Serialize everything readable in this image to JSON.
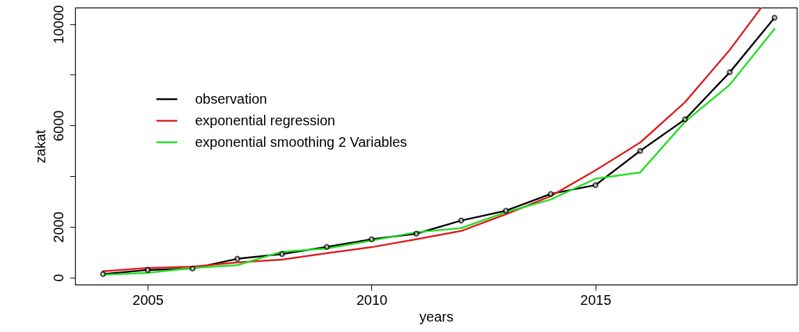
{
  "chart_data": {
    "type": "line",
    "xlabel": "years",
    "ylabel": "zakat",
    "x": [
      2004,
      2005,
      2006,
      2007,
      2008,
      2009,
      2010,
      2011,
      2012,
      2013,
      2014,
      2015,
      2016,
      2017,
      2018,
      2019
    ],
    "series": [
      {
        "name": "observation",
        "color": "#000000",
        "marker": "circle",
        "values": [
          137,
          300,
          360,
          740,
          930,
          1210,
          1510,
          1730,
          2250,
          2640,
          3300,
          3650,
          5000,
          6240,
          8100,
          10250
        ]
      },
      {
        "name": "exponential regression",
        "color": "#dd1c1c",
        "x": [
          2004,
          2005,
          2006,
          2007,
          2008,
          2009,
          2010,
          2011,
          2012,
          2013,
          2014,
          2015,
          2016,
          2017,
          2018,
          2018.7
        ],
        "values": [
          250,
          380,
          430,
          600,
          710,
          960,
          1200,
          1510,
          1840,
          2500,
          3210,
          4230,
          5330,
          6920,
          8980,
          10640
        ]
      },
      {
        "name": "exponential smoothing 2 Variables",
        "color": "#22dd22",
        "values": [
          110,
          190,
          380,
          490,
          1020,
          1150,
          1460,
          1790,
          1950,
          2580,
          3080,
          3900,
          4150,
          6150,
          7610,
          9810
        ]
      }
    ],
    "xlim": [
      2003.38,
      2019.5
    ],
    "xticks": [
      2005,
      2010,
      2015
    ],
    "ylim": [
      -280,
      10650
    ],
    "yticks": [
      0,
      2000,
      {
        "value": 4000,
        "label": null
      },
      6000,
      {
        "value": 8000,
        "label": null
      },
      10000
    ],
    "grid": false,
    "legend": "top left",
    "line_style": "solid"
  }
}
